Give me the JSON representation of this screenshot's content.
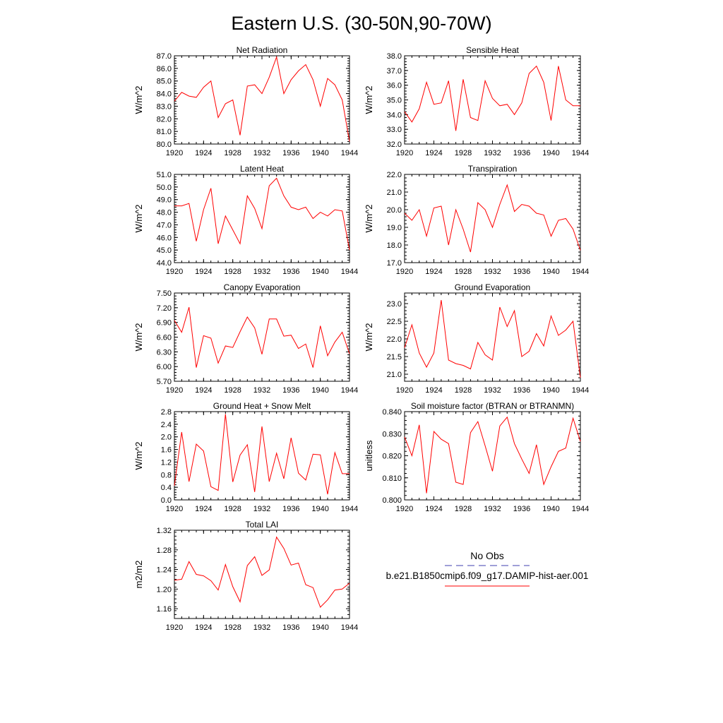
{
  "figure": {
    "title": "Eastern U.S. (30-50N,90-70W)"
  },
  "legend": {
    "obs_label": "No Obs",
    "obs_color": "#3f3fb0",
    "model_label": "b.e21.B1850cmip6.f09_g17.DAMIP-hist-aer.001",
    "model_color": "#ff0000"
  },
  "chart_data": [
    {
      "type": "line",
      "title": "Net Radiation",
      "ylabel": "W/m^2",
      "xlim": [
        1920,
        1944
      ],
      "ylim": [
        80.0,
        87.0
      ],
      "xticks": [
        "1920",
        "1924",
        "1928",
        "1932",
        "1936",
        "1940",
        "1944"
      ],
      "yticks": [
        "80.0",
        "81.0",
        "82.0",
        "83.0",
        "84.0",
        "85.0",
        "86.0",
        "87.0"
      ],
      "series": [
        {
          "color": "#ff0000",
          "x": [
            1920,
            1921,
            1922,
            1923,
            1924,
            1925,
            1926,
            1927,
            1928,
            1929,
            1930,
            1931,
            1932,
            1933,
            1934,
            1935,
            1936,
            1937,
            1938,
            1939,
            1940,
            1941,
            1942,
            1943,
            1944
          ],
          "values": [
            83.4,
            84.1,
            83.8,
            83.7,
            84.5,
            85.0,
            82.1,
            83.2,
            83.5,
            80.7,
            84.6,
            84.7,
            84.0,
            85.3,
            86.9,
            84.0,
            85.1,
            85.8,
            86.3,
            85.1,
            83.0,
            85.2,
            84.7,
            83.5,
            80.2
          ]
        }
      ]
    },
    {
      "type": "line",
      "title": "Sensible Heat",
      "ylabel": "W/m^2",
      "xlim": [
        1920,
        1944
      ],
      "ylim": [
        32.0,
        38.0
      ],
      "xticks": [
        "1920",
        "1924",
        "1928",
        "1932",
        "1936",
        "1940",
        "1944"
      ],
      "yticks": [
        "32.0",
        "33.0",
        "34.0",
        "35.0",
        "36.0",
        "37.0",
        "38.0"
      ],
      "series": [
        {
          "color": "#ff0000",
          "x": [
            1920,
            1921,
            1922,
            1923,
            1924,
            1925,
            1926,
            1927,
            1928,
            1929,
            1930,
            1931,
            1932,
            1933,
            1934,
            1935,
            1936,
            1937,
            1938,
            1939,
            1940,
            1941,
            1942,
            1943,
            1944
          ],
          "values": [
            34.2,
            33.5,
            34.4,
            36.2,
            34.7,
            34.8,
            36.3,
            32.9,
            36.4,
            33.8,
            33.6,
            36.3,
            35.1,
            34.6,
            34.7,
            34.0,
            34.8,
            36.8,
            37.3,
            36.2,
            33.6,
            37.3,
            35.0,
            34.6,
            34.6
          ]
        }
      ]
    },
    {
      "type": "line",
      "title": "Latent Heat",
      "ylabel": "W/m^2",
      "xlim": [
        1920,
        1944
      ],
      "ylim": [
        44.0,
        51.0
      ],
      "xticks": [
        "1920",
        "1924",
        "1928",
        "1932",
        "1936",
        "1940",
        "1944"
      ],
      "yticks": [
        "44.0",
        "45.0",
        "46.0",
        "47.0",
        "48.0",
        "49.0",
        "50.0",
        "51.0"
      ],
      "series": [
        {
          "color": "#ff0000",
          "x": [
            1920,
            1921,
            1922,
            1923,
            1924,
            1925,
            1926,
            1927,
            1928,
            1929,
            1930,
            1931,
            1932,
            1933,
            1934,
            1935,
            1936,
            1937,
            1938,
            1939,
            1940,
            1941,
            1942,
            1943,
            1944
          ],
          "values": [
            48.5,
            48.5,
            48.7,
            45.7,
            48.2,
            49.9,
            45.5,
            47.7,
            46.6,
            45.5,
            49.3,
            48.3,
            46.7,
            50.1,
            50.7,
            49.3,
            48.4,
            48.2,
            48.4,
            47.5,
            48.0,
            47.7,
            48.2,
            48.1,
            45.0
          ]
        }
      ]
    },
    {
      "type": "line",
      "title": "Transpiration",
      "ylabel": "W/m^2",
      "xlim": [
        1920,
        1944
      ],
      "ylim": [
        17.0,
        22.0
      ],
      "xticks": [
        "1920",
        "1924",
        "1928",
        "1932",
        "1936",
        "1940",
        "1944"
      ],
      "yticks": [
        "17.0",
        "18.0",
        "19.0",
        "20.0",
        "21.0",
        "22.0"
      ],
      "series": [
        {
          "color": "#ff0000",
          "x": [
            1920,
            1921,
            1922,
            1923,
            1924,
            1925,
            1926,
            1927,
            1928,
            1929,
            1930,
            1931,
            1932,
            1933,
            1934,
            1935,
            1936,
            1937,
            1938,
            1939,
            1940,
            1941,
            1942,
            1943,
            1944
          ],
          "values": [
            19.8,
            19.4,
            20.0,
            18.5,
            20.1,
            20.2,
            18.0,
            20.0,
            18.9,
            17.6,
            20.4,
            20.0,
            19.0,
            20.3,
            21.4,
            19.9,
            20.3,
            20.2,
            19.8,
            19.7,
            18.5,
            19.4,
            19.5,
            18.9,
            17.7
          ]
        }
      ]
    },
    {
      "type": "line",
      "title": "Canopy Evaporation",
      "ylabel": "W/m^2",
      "xlim": [
        1920,
        1944
      ],
      "ylim": [
        5.7,
        7.5
      ],
      "xticks": [
        "1920",
        "1924",
        "1928",
        "1932",
        "1936",
        "1940",
        "1944"
      ],
      "yticks": [
        "5.70",
        "6.00",
        "6.30",
        "6.60",
        "6.90",
        "7.20",
        "7.50"
      ],
      "series": [
        {
          "color": "#ff0000",
          "x": [
            1920,
            1921,
            1922,
            1923,
            1924,
            1925,
            1926,
            1927,
            1928,
            1929,
            1930,
            1931,
            1932,
            1933,
            1934,
            1935,
            1936,
            1937,
            1938,
            1939,
            1940,
            1941,
            1942,
            1943,
            1944
          ],
          "values": [
            6.94,
            6.7,
            7.21,
            5.98,
            6.63,
            6.58,
            6.07,
            6.42,
            6.39,
            6.71,
            7.01,
            6.79,
            6.25,
            6.97,
            6.97,
            6.62,
            6.64,
            6.37,
            6.46,
            5.98,
            6.83,
            6.22,
            6.5,
            6.7,
            6.26
          ]
        }
      ]
    },
    {
      "type": "line",
      "title": "Ground Evaporation",
      "ylabel": "W/m^2",
      "xlim": [
        1920,
        1944
      ],
      "ylim": [
        20.8,
        23.3
      ],
      "xticks": [
        "1920",
        "1924",
        "1928",
        "1932",
        "1936",
        "1940",
        "1944"
      ],
      "yticks": [
        "21.0",
        "21.5",
        "22.0",
        "22.5",
        "23.0"
      ],
      "series": [
        {
          "color": "#ff0000",
          "x": [
            1920,
            1921,
            1922,
            1923,
            1924,
            1925,
            1926,
            1927,
            1928,
            1929,
            1930,
            1931,
            1932,
            1933,
            1934,
            1935,
            1936,
            1937,
            1938,
            1939,
            1940,
            1941,
            1942,
            1943,
            1944
          ],
          "values": [
            21.75,
            22.4,
            21.6,
            21.2,
            21.6,
            23.1,
            21.4,
            21.3,
            21.25,
            21.15,
            21.9,
            21.55,
            21.4,
            22.9,
            22.35,
            22.8,
            21.5,
            21.65,
            22.15,
            21.8,
            22.65,
            22.1,
            22.25,
            22.5,
            20.9
          ]
        }
      ]
    },
    {
      "type": "line",
      "title": "Ground Heat + Snow Melt",
      "ylabel": "W/m^2",
      "xlim": [
        1920,
        1944
      ],
      "ylim": [
        0.0,
        2.8
      ],
      "xticks": [
        "1920",
        "1924",
        "1928",
        "1932",
        "1936",
        "1940",
        "1944"
      ],
      "yticks": [
        "0.0",
        "0.4",
        "0.8",
        "1.2",
        "1.6",
        "2.0",
        "2.4",
        "2.8"
      ],
      "series": [
        {
          "color": "#ff0000",
          "x": [
            1920,
            1921,
            1922,
            1923,
            1924,
            1925,
            1926,
            1927,
            1928,
            1929,
            1930,
            1931,
            1932,
            1933,
            1934,
            1935,
            1936,
            1937,
            1938,
            1939,
            1940,
            1941,
            1942,
            1943,
            1944
          ],
          "values": [
            0.45,
            2.15,
            0.58,
            1.77,
            1.55,
            0.42,
            0.3,
            2.72,
            0.57,
            1.42,
            1.75,
            0.25,
            2.33,
            0.58,
            1.48,
            0.67,
            1.97,
            0.85,
            0.63,
            1.45,
            1.43,
            0.18,
            1.5,
            0.83,
            0.83
          ]
        }
      ]
    },
    {
      "type": "line",
      "title": "Soil moisture factor (BTRAN or BTRANMN)",
      "ylabel": "unitless",
      "xlim": [
        1920,
        1944
      ],
      "ylim": [
        0.8,
        0.84
      ],
      "xticks": [
        "1920",
        "1924",
        "1928",
        "1932",
        "1936",
        "1940",
        "1944"
      ],
      "yticks": [
        "0.800",
        "0.810",
        "0.820",
        "0.830",
        "0.840"
      ],
      "series": [
        {
          "color": "#ff0000",
          "x": [
            1920,
            1921,
            1922,
            1923,
            1924,
            1925,
            1926,
            1927,
            1928,
            1929,
            1930,
            1931,
            1932,
            1933,
            1934,
            1935,
            1936,
            1937,
            1938,
            1939,
            1940,
            1941,
            1942,
            1943,
            1944
          ],
          "values": [
            0.8285,
            0.82,
            0.834,
            0.803,
            0.831,
            0.8275,
            0.8255,
            0.808,
            0.807,
            0.8305,
            0.8355,
            0.8245,
            0.813,
            0.8335,
            0.8375,
            0.8255,
            0.8185,
            0.812,
            0.825,
            0.807,
            0.815,
            0.822,
            0.8235,
            0.837,
            0.8265
          ]
        }
      ]
    },
    {
      "type": "line",
      "title": "Total LAI",
      "ylabel": "m2/m2",
      "xlim": [
        1920,
        1944
      ],
      "ylim": [
        1.14,
        1.32
      ],
      "xticks": [
        "1920",
        "1924",
        "1928",
        "1932",
        "1936",
        "1940",
        "1944"
      ],
      "yticks": [
        "1.16",
        "1.20",
        "1.24",
        "1.28",
        "1.32"
      ],
      "series": [
        {
          "color": "#ff0000",
          "x": [
            1920,
            1921,
            1922,
            1923,
            1924,
            1925,
            1926,
            1927,
            1928,
            1929,
            1930,
            1931,
            1932,
            1933,
            1934,
            1935,
            1936,
            1937,
            1938,
            1939,
            1940,
            1941,
            1942,
            1943,
            1944
          ],
          "values": [
            1.218,
            1.22,
            1.256,
            1.23,
            1.227,
            1.217,
            1.198,
            1.25,
            1.205,
            1.174,
            1.248,
            1.266,
            1.228,
            1.239,
            1.306,
            1.283,
            1.249,
            1.253,
            1.209,
            1.203,
            1.163,
            1.178,
            1.198,
            1.2,
            1.212
          ]
        }
      ]
    }
  ]
}
